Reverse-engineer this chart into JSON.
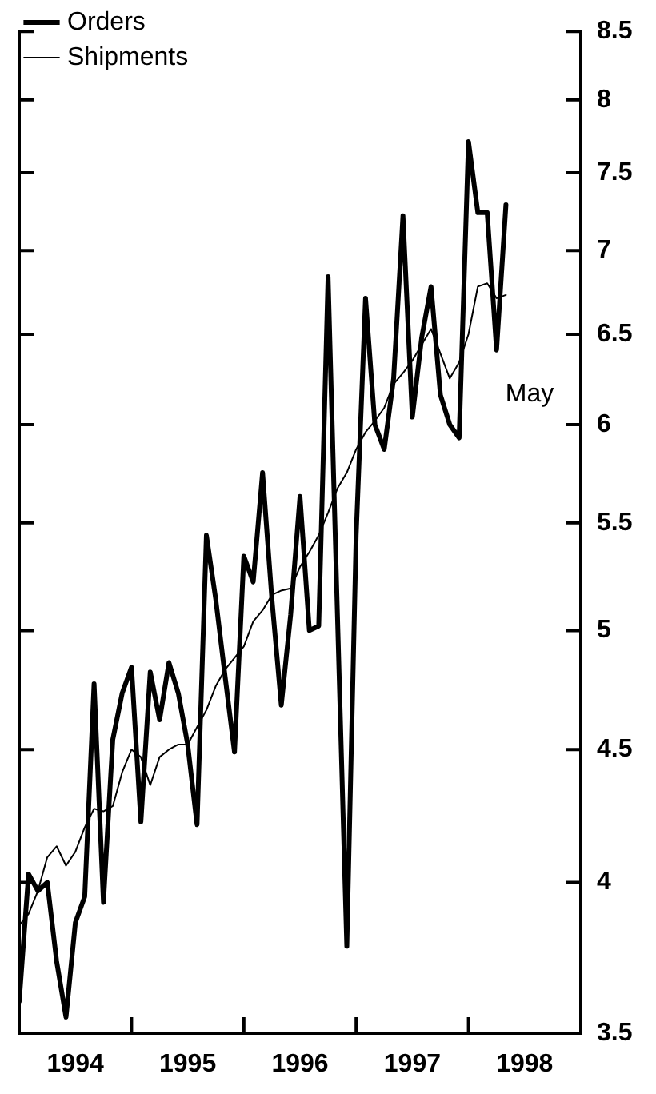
{
  "chart_data": {
    "type": "line",
    "x": [
      "1994-01",
      "1994-02",
      "1994-03",
      "1994-04",
      "1994-05",
      "1994-06",
      "1994-07",
      "1994-08",
      "1994-09",
      "1994-10",
      "1994-11",
      "1994-12",
      "1995-01",
      "1995-02",
      "1995-03",
      "1995-04",
      "1995-05",
      "1995-06",
      "1995-07",
      "1995-08",
      "1995-09",
      "1995-10",
      "1995-11",
      "1995-12",
      "1996-01",
      "1996-02",
      "1996-03",
      "1996-04",
      "1996-05",
      "1996-06",
      "1996-07",
      "1996-08",
      "1996-09",
      "1996-10",
      "1996-11",
      "1996-12",
      "1997-01",
      "1997-02",
      "1997-03",
      "1997-04",
      "1997-05",
      "1997-06",
      "1997-07",
      "1997-08",
      "1997-09",
      "1997-10",
      "1997-11",
      "1997-12",
      "1998-01",
      "1998-02",
      "1998-03",
      "1998-04",
      "1998-05"
    ],
    "series": [
      {
        "name": "Orders",
        "color": "#000000",
        "values": [
          3.6,
          4.03,
          3.97,
          4.0,
          3.73,
          3.55,
          3.86,
          3.95,
          4.77,
          3.93,
          4.54,
          4.73,
          4.84,
          4.22,
          4.82,
          4.62,
          4.86,
          4.73,
          4.52,
          4.21,
          5.44,
          5.14,
          4.8,
          4.49,
          5.34,
          5.22,
          5.75,
          5.14,
          4.68,
          5.07,
          5.63,
          5.0,
          5.02,
          6.84,
          5.07,
          3.78,
          5.44,
          6.71,
          6.0,
          5.87,
          6.25,
          7.22,
          6.04,
          6.48,
          6.78,
          6.16,
          6.0,
          5.93,
          7.71,
          7.24,
          7.24,
          6.41,
          7.29
        ]
      },
      {
        "name": "Shipments",
        "color": "#000000",
        "values": [
          3.85,
          3.89,
          3.97,
          4.09,
          4.13,
          4.06,
          4.11,
          4.2,
          4.27,
          4.26,
          4.28,
          4.41,
          4.5,
          4.47,
          4.36,
          4.47,
          4.5,
          4.52,
          4.52,
          4.59,
          4.66,
          4.76,
          4.83,
          4.88,
          4.93,
          5.04,
          5.09,
          5.16,
          5.18,
          5.19,
          5.29,
          5.36,
          5.44,
          5.55,
          5.67,
          5.75,
          5.87,
          5.96,
          6.02,
          6.09,
          6.22,
          6.28,
          6.35,
          6.44,
          6.53,
          6.39,
          6.25,
          6.34,
          6.5,
          6.78,
          6.8,
          6.71,
          6.73
        ]
      }
    ],
    "xlim": [
      "1994-01",
      "1999-01"
    ],
    "xticks": [
      {
        "value": "1994-07",
        "label": "1994"
      },
      {
        "value": "1995-01",
        "label": null
      },
      {
        "value": "1995-07",
        "label": "1995"
      },
      {
        "value": "1996-01",
        "label": null
      },
      {
        "value": "1996-07",
        "label": "1996"
      },
      {
        "value": "1997-01",
        "label": null
      },
      {
        "value": "1997-07",
        "label": "1997"
      },
      {
        "value": "1998-01",
        "label": null
      },
      {
        "value": "1998-07",
        "label": "1998"
      }
    ],
    "ylim": [
      3.5,
      8.5
    ],
    "yticks": [
      3.5,
      4,
      4.5,
      5,
      5.5,
      6,
      6.5,
      7,
      7.5,
      8,
      8.5
    ],
    "log": "y",
    "legend": "top left",
    "grid": false,
    "marker": "none",
    "line_style": "solid",
    "annotations": [
      "May"
    ]
  }
}
